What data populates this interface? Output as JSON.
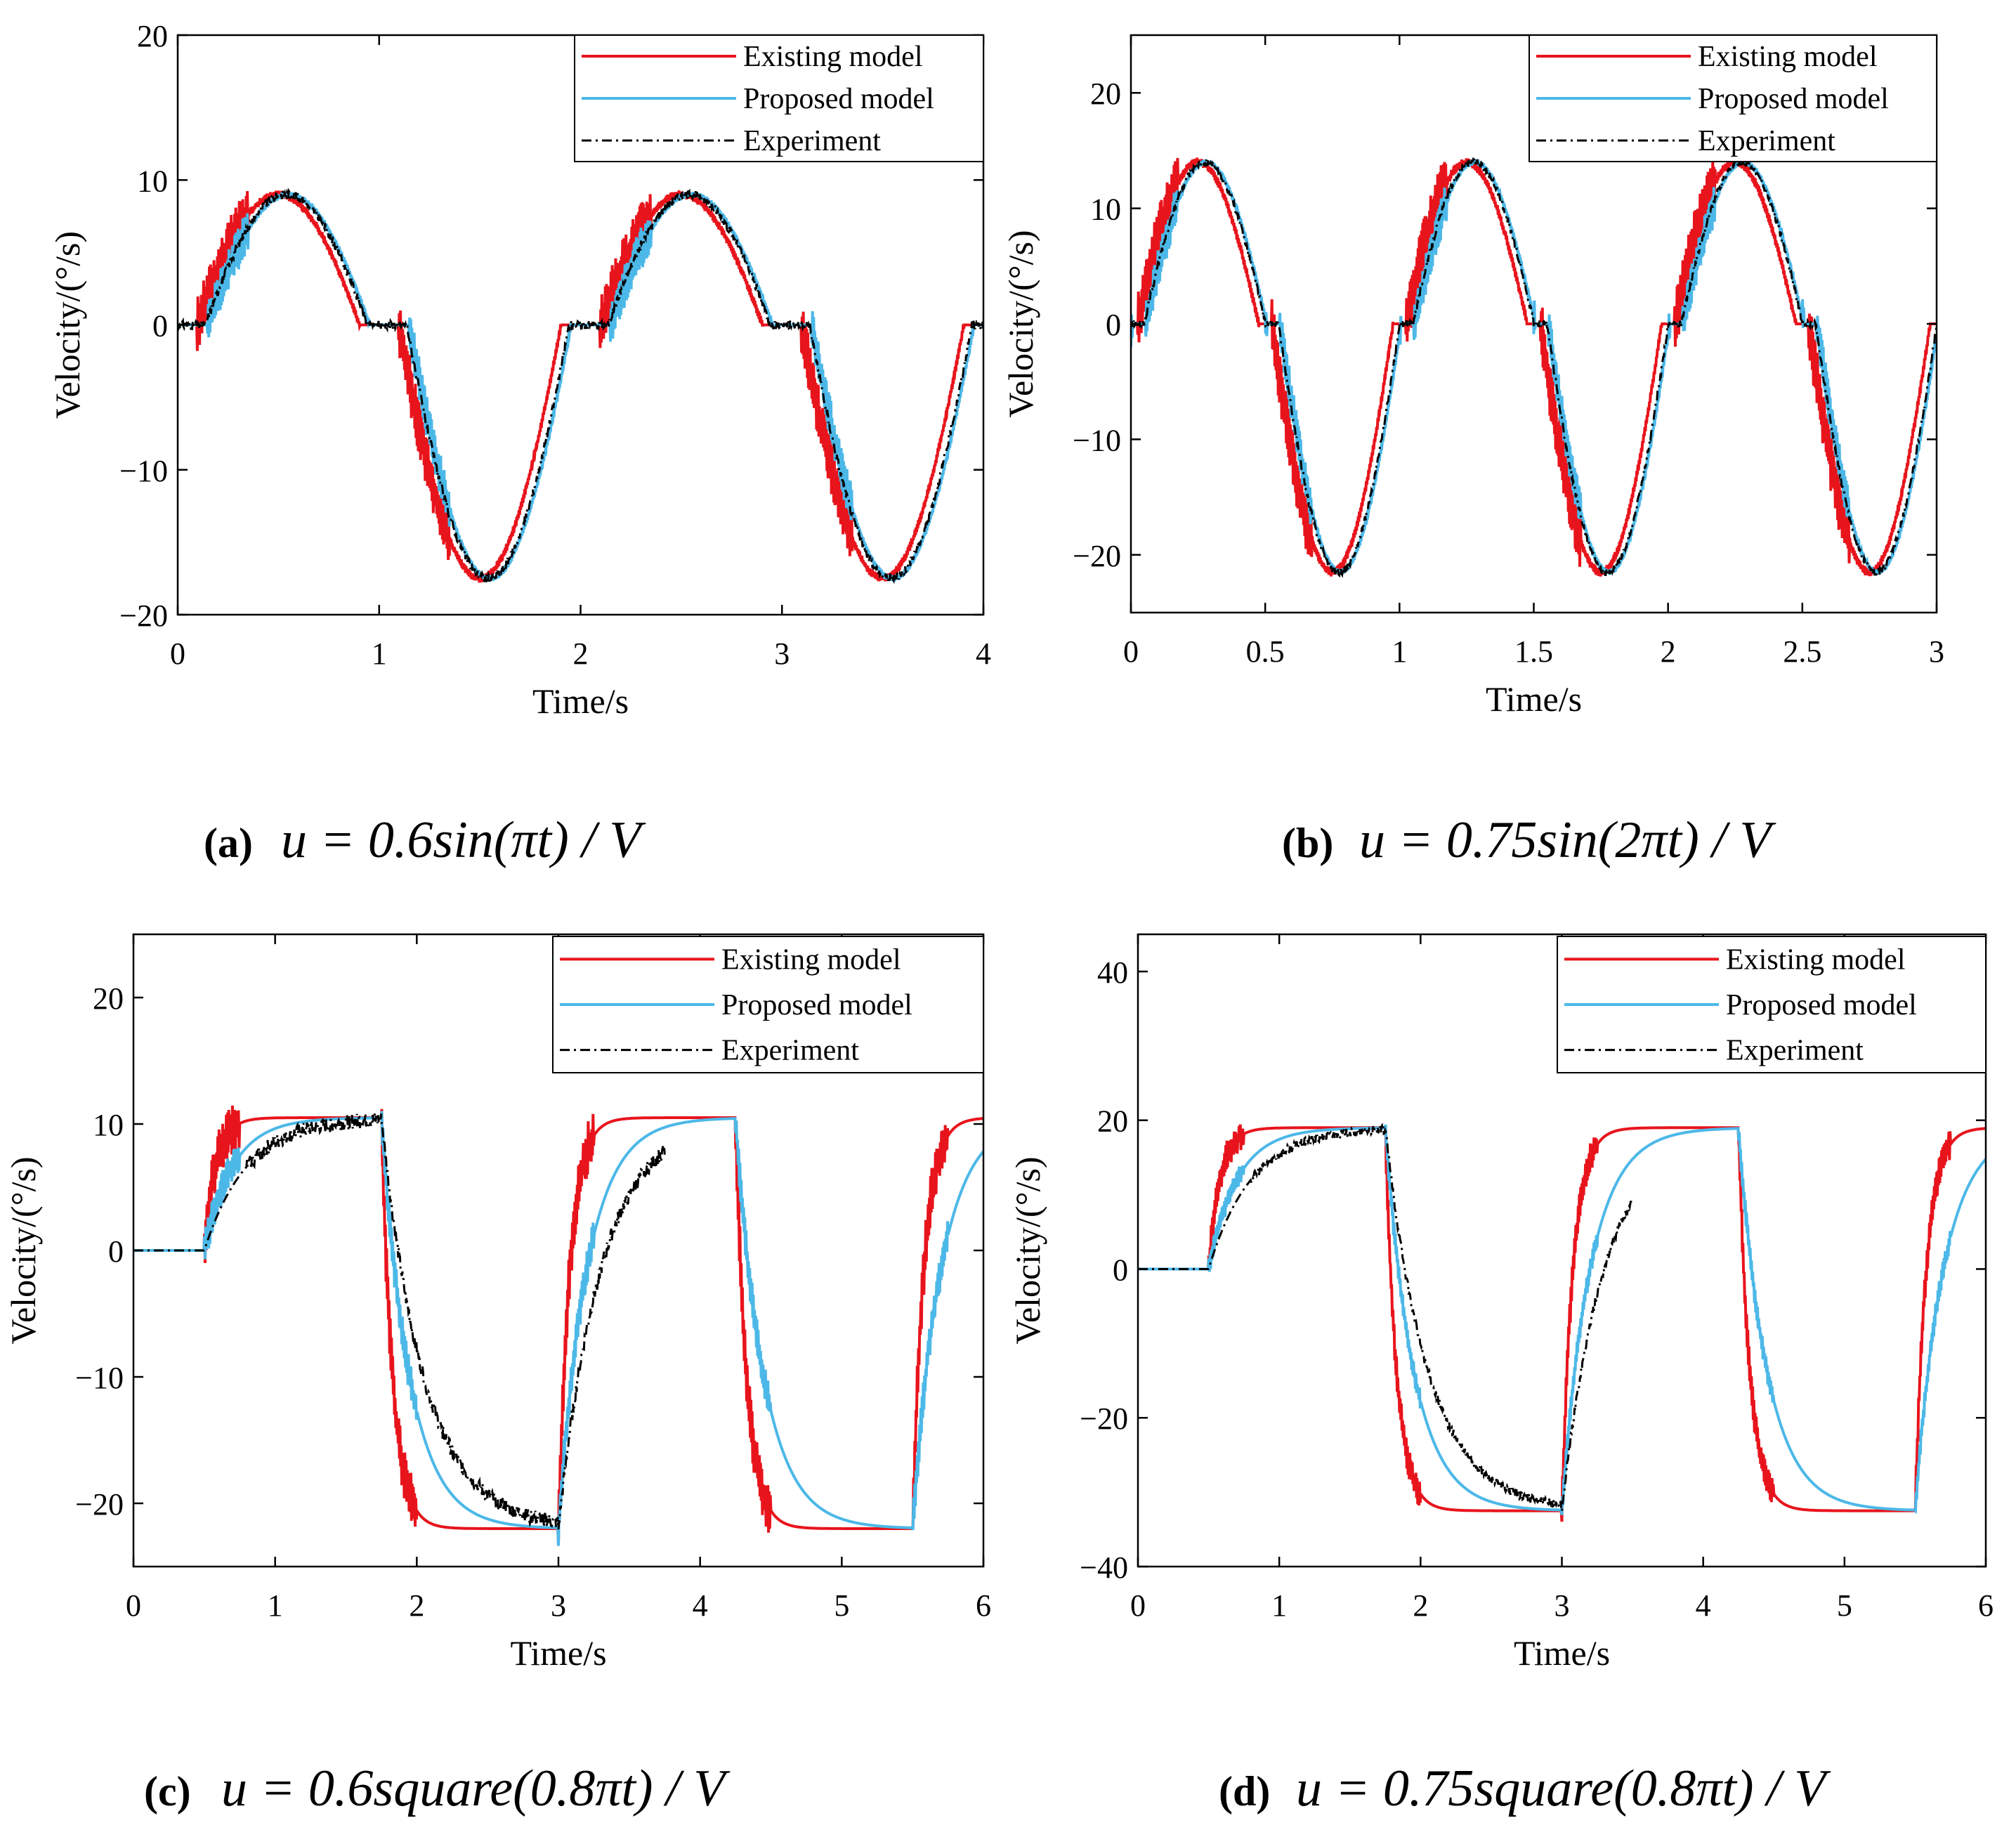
{
  "colors": {
    "existing": "#e8141c",
    "proposed": "#4cb8e8",
    "experiment": "#000000",
    "axis": "#000000"
  },
  "chart_data": [
    {
      "id": "a",
      "type": "line",
      "xlabel": "Time/s",
      "ylabel": "Velocity/(°/s)",
      "xlim": [
        0,
        4
      ],
      "ylim": [
        -20,
        20
      ],
      "xticks": [
        0,
        1,
        2,
        3,
        4
      ],
      "yticks": [
        -20,
        -10,
        0,
        10,
        20
      ],
      "xtick_labels": [
        "0",
        "1",
        "2",
        "3",
        "4"
      ],
      "ytick_labels": [
        "−20",
        "−10",
        "0",
        "10",
        "20"
      ],
      "legend": [
        "Existing model",
        "Proposed model",
        "Experiment"
      ],
      "legend_position": "top-right",
      "caption": {
        "label": "(a)",
        "formula": "u = 0.6sin(πt) / V"
      },
      "signal": {
        "kind": "sine",
        "period": 2,
        "pos_amp": 9,
        "neg_amp": 17.5,
        "deadband": 0.3
      },
      "series": [
        {
          "name": "Existing model",
          "key": "existing",
          "lag": 0.0,
          "chatter": 1.3
        },
        {
          "name": "Proposed model",
          "key": "proposed",
          "lag": 0.05,
          "chatter": 1.0
        },
        {
          "name": "Experiment",
          "key": "experiment",
          "lag": 0.04,
          "chatter": 0.0
        }
      ]
    },
    {
      "id": "b",
      "type": "line",
      "xlabel": "Time/s",
      "ylabel": "Velocity/(°/s)",
      "xlim": [
        0,
        3
      ],
      "ylim": [
        -25,
        25
      ],
      "xticks": [
        0,
        0.5,
        1,
        1.5,
        2,
        2.5,
        3
      ],
      "yticks": [
        -20,
        -10,
        0,
        10,
        20
      ],
      "xtick_labels": [
        "0",
        "0.5",
        "1",
        "1.5",
        "2",
        "2.5",
        "3"
      ],
      "ytick_labels": [
        "−20",
        "−10",
        "0",
        "10",
        "20"
      ],
      "legend": [
        "Existing model",
        "Proposed model",
        "Experiment"
      ],
      "legend_position": "top-right",
      "caption": {
        "label": "(b)",
        "formula": "u = 0.75sin(2πt) / V"
      },
      "signal": {
        "kind": "sine",
        "period": 1,
        "pos_amp": 14,
        "neg_amp": 21.5,
        "deadband": 0.15
      },
      "series": [
        {
          "name": "Existing model",
          "key": "existing",
          "lag": 0.0,
          "chatter": 1.8
        },
        {
          "name": "Proposed model",
          "key": "proposed",
          "lag": 0.03,
          "chatter": 1.2
        },
        {
          "name": "Experiment",
          "key": "experiment",
          "lag": 0.025,
          "chatter": 0.0
        }
      ]
    },
    {
      "id": "c",
      "type": "line",
      "xlabel": "Time/s",
      "ylabel": "Velocity/(°/s)",
      "xlim": [
        0,
        6
      ],
      "ylim": [
        -25,
        25
      ],
      "xticks": [
        0,
        1,
        2,
        3,
        4,
        5,
        6
      ],
      "yticks": [
        -20,
        -10,
        0,
        10,
        20
      ],
      "xtick_labels": [
        "0",
        "1",
        "2",
        "3",
        "4",
        "5",
        "6"
      ],
      "ytick_labels": [
        "−20",
        "−10",
        "0",
        "10",
        "20"
      ],
      "legend": [
        "Existing model",
        "Proposed model",
        "Experiment"
      ],
      "legend_position": "top-right",
      "caption": {
        "label": "(c)",
        "formula": "u = 0.6square(0.8πt) / V"
      },
      "signal": {
        "kind": "square",
        "period": 2.5,
        "start": 0.5,
        "high": 10.5,
        "low": -22,
        "experiment_end": 3.75
      },
      "series": [
        {
          "name": "Existing model",
          "key": "existing",
          "tau": 0.08,
          "chatter": 1.5
        },
        {
          "name": "Proposed model",
          "key": "proposed",
          "tau": 0.2,
          "chatter": 1.0
        },
        {
          "name": "Experiment",
          "key": "experiment",
          "tau": 0.3,
          "chatter": 0.0
        }
      ]
    },
    {
      "id": "d",
      "type": "line",
      "xlabel": "Time/s",
      "ylabel": "Velocity/(°/s)",
      "xlim": [
        0,
        6
      ],
      "ylim": [
        -40,
        45
      ],
      "xticks": [
        0,
        1,
        2,
        3,
        4,
        5,
        6
      ],
      "yticks": [
        -40,
        -20,
        0,
        20,
        40
      ],
      "xtick_labels": [
        "0",
        "1",
        "2",
        "3",
        "4",
        "5",
        "6"
      ],
      "ytick_labels": [
        "−40",
        "−20",
        "0",
        "20",
        "40"
      ],
      "legend": [
        "Existing model",
        "Proposed model",
        "Experiment"
      ],
      "legend_position": "top-right",
      "caption": {
        "label": "(d)",
        "formula": "u = 0.75square(0.8πt) / V"
      },
      "signal": {
        "kind": "square",
        "period": 2.5,
        "start": 0.5,
        "high": 19,
        "low": -32.5,
        "experiment_end": 3.5
      },
      "series": [
        {
          "name": "Existing model",
          "key": "existing",
          "tau": 0.08,
          "chatter": 1.5
        },
        {
          "name": "Proposed model",
          "key": "proposed",
          "tau": 0.2,
          "chatter": 1.0
        },
        {
          "name": "Experiment",
          "key": "experiment",
          "tau": 0.3,
          "chatter": 0.0
        }
      ]
    }
  ]
}
